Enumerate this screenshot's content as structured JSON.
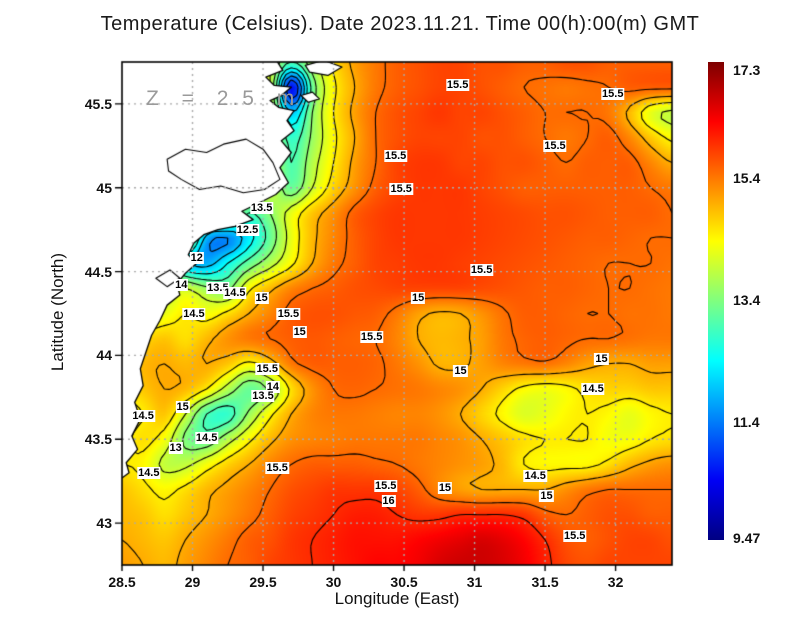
{
  "title": "Temperature (Celsius). Date 2023.11.21. Time 00(h):00(m) GMT",
  "annotation": "Z = 2.5 m",
  "chart_data": {
    "type": "heatmap",
    "title": "Temperature (Celsius). Date 2023.11.21. Time 00(h):00(m) GMT",
    "xlabel": "Longitude (East)",
    "ylabel": "Latitude (North)",
    "xlim": [
      28.5,
      32.4
    ],
    "ylim": [
      42.75,
      45.75
    ],
    "x_ticks": [
      28.5,
      29,
      29.5,
      30,
      30.5,
      31,
      31.5,
      32
    ],
    "x_tick_labels": [
      "28.5",
      "29",
      "29.5",
      "30",
      "30.5",
      "31",
      "31.5",
      "32"
    ],
    "y_ticks": [
      45.5,
      45,
      44.5,
      44,
      43.5,
      43
    ],
    "y_tick_labels": [
      "45.5",
      "45",
      "44.5",
      "44",
      "43.5",
      "43"
    ],
    "grid": "dotted",
    "gridline_color": "#aaaaaa",
    "land_color": "#ffffff",
    "coast_color": "#000000",
    "contour_color": "#000000",
    "contour_interval": 0.5,
    "contour_levels": [
      10.5,
      11,
      11.5,
      12,
      12.5,
      13,
      13.5,
      14,
      14.5,
      15,
      15.5,
      16
    ],
    "colorbar": {
      "min": 9.47,
      "max": 17.3,
      "tick_values": [
        17.3,
        15.4,
        13.4,
        11.4,
        9.47
      ],
      "tick_labels": [
        "17.3",
        "15.4",
        "13.4",
        "11.4",
        "9.47"
      ],
      "colormap": "jet",
      "stops": [
        [
          0,
          "#000082"
        ],
        [
          0.125,
          "#0000f5"
        ],
        [
          0.375,
          "#00ffff"
        ],
        [
          0.625,
          "#ffff00"
        ],
        [
          0.875,
          "#ff0000"
        ],
        [
          1,
          "#7d0000"
        ]
      ]
    },
    "grid_lon": {
      "start": 28.5,
      "step": 0.15,
      "n": 27
    },
    "grid_lat": {
      "start": 45.75,
      "step": -0.15,
      "n": 21
    },
    "temperature_grid": [
      [
        14,
        14,
        14,
        14,
        14,
        14,
        14,
        14,
        13.0,
        13.8,
        14.6,
        15.1,
        15.4,
        15.6,
        15.7,
        15.8,
        15.8,
        15.7,
        15.7,
        15.6,
        15.6,
        15.7,
        15.7,
        15.6,
        15.6,
        15.6,
        15.6
      ],
      [
        14,
        14,
        14,
        14,
        14,
        14,
        14,
        14,
        10.5,
        13.2,
        14.4,
        15.0,
        15.4,
        15.6,
        15.7,
        15.8,
        15.8,
        15.7,
        15.6,
        15.5,
        15.45,
        15.4,
        15.45,
        15.5,
        15.6,
        15.6,
        15.6
      ],
      [
        14,
        14,
        14,
        14,
        14,
        14,
        14,
        14,
        12.0,
        13.5,
        14.5,
        15.1,
        15.5,
        15.7,
        15.8,
        15.9,
        15.8,
        15.8,
        15.7,
        15.6,
        15.5,
        15.5,
        15.5,
        15.4,
        14.9,
        14.2,
        13.9
      ],
      [
        14,
        14,
        14,
        14,
        14,
        14,
        14,
        14,
        12.8,
        13.6,
        14.4,
        15.0,
        15.5,
        15.7,
        15.8,
        15.8,
        15.8,
        15.7,
        15.7,
        15.6,
        15.5,
        15.4,
        15.5,
        15.6,
        15.3,
        14.8,
        14.4
      ],
      [
        14,
        14,
        14,
        14,
        14,
        14,
        14,
        14,
        13.0,
        13.8,
        14.5,
        15.1,
        15.5,
        15.8,
        15.9,
        15.9,
        15.8,
        15.8,
        15.7,
        15.7,
        15.6,
        15.5,
        15.6,
        15.6,
        15.6,
        15.3,
        15.0
      ],
      [
        14,
        14,
        14,
        14,
        14,
        14,
        14,
        14,
        13.2,
        14.0,
        14.7,
        15.2,
        15.6,
        15.8,
        15.9,
        15.9,
        15.9,
        15.8,
        15.7,
        15.6,
        15.6,
        15.6,
        15.6,
        15.6,
        15.6,
        15.5,
        15.4
      ],
      [
        14,
        14,
        14,
        14,
        14,
        14,
        13.0,
        13.5,
        14.2,
        14.8,
        15.2,
        15.6,
        15.8,
        15.9,
        15.9,
        15.9,
        15.9,
        15.85,
        15.8,
        15.75,
        15.7,
        15.7,
        15.65,
        15.6,
        15.6,
        15.6,
        15.5
      ],
      [
        14,
        14,
        14,
        14,
        11.8,
        11.5,
        12.3,
        13.2,
        14.2,
        14.9,
        15.3,
        15.6,
        15.8,
        15.9,
        15.9,
        15.9,
        15.9,
        15.85,
        15.8,
        15.75,
        15.7,
        15.65,
        15.6,
        15.6,
        15.55,
        15.5,
        15.5
      ],
      [
        14,
        14,
        14,
        12.2,
        11.8,
        12.5,
        13.2,
        13.8,
        14.4,
        15.0,
        15.4,
        15.6,
        15.8,
        15.85,
        15.9,
        15.9,
        15.85,
        15.8,
        15.75,
        15.7,
        15.65,
        15.6,
        15.55,
        15.5,
        15.5,
        15.5,
        15.45
      ],
      [
        14,
        14,
        13.8,
        14.0,
        13.6,
        13.4,
        14.4,
        14.9,
        15.3,
        15.5,
        15.6,
        15.7,
        15.75,
        15.8,
        15.8,
        15.8,
        15.8,
        15.75,
        15.7,
        15.65,
        15.6,
        15.6,
        15.55,
        15.5,
        15.5,
        15.45,
        15.4
      ],
      [
        14,
        14,
        14.2,
        14.5,
        14.3,
        14.6,
        15.0,
        15.3,
        15.6,
        15.7,
        15.7,
        15.65,
        15.6,
        15.4,
        15.1,
        14.95,
        15.0,
        15.2,
        15.45,
        15.6,
        15.6,
        15.55,
        15.5,
        15.5,
        15.45,
        15.45,
        15.4
      ],
      [
        14,
        14.6,
        14.8,
        14.6,
        14.9,
        15.2,
        15.4,
        15.5,
        15.6,
        15.65,
        15.6,
        15.55,
        15.5,
        15.3,
        15.0,
        14.9,
        14.95,
        15.1,
        15.4,
        15.55,
        15.6,
        15.55,
        15.5,
        15.5,
        15.45,
        15.4,
        15.4
      ],
      [
        14.5,
        14.9,
        15.0,
        14.9,
        15.0,
        14.8,
        14.4,
        14.8,
        15.4,
        15.6,
        15.6,
        15.6,
        15.55,
        15.4,
        15.2,
        14.95,
        14.95,
        15.1,
        15.3,
        15.4,
        15.45,
        15.3,
        15.1,
        15.0,
        15.0,
        15.1,
        15.1
      ],
      [
        14.5,
        14.8,
        15.0,
        14.9,
        14.5,
        13.8,
        13.2,
        13.6,
        14.6,
        15.2,
        15.5,
        15.55,
        15.5,
        15.45,
        15.4,
        15.3,
        15.2,
        15.0,
        14.7,
        14.4,
        14.3,
        14.4,
        14.6,
        14.7,
        14.7,
        14.8,
        14.8
      ],
      [
        14.3,
        14.5,
        14.8,
        14.0,
        13.0,
        12.8,
        13.6,
        14.4,
        15.0,
        15.3,
        15.4,
        15.4,
        15.35,
        15.3,
        15.3,
        15.2,
        15.0,
        14.7,
        14.4,
        14.1,
        14.2,
        14.4,
        14.5,
        14.4,
        14.2,
        14.4,
        14.5
      ],
      [
        14.4,
        14.6,
        14.3,
        13.4,
        13.2,
        13.8,
        14.4,
        14.9,
        15.2,
        15.3,
        15.35,
        15.4,
        15.4,
        15.4,
        15.4,
        15.3,
        15.2,
        15.0,
        14.8,
        14.6,
        14.5,
        14.5,
        14.5,
        14.3,
        14.3,
        14.5,
        14.6
      ],
      [
        14.5,
        14.4,
        13.9,
        13.9,
        14.3,
        14.7,
        15.0,
        15.3,
        15.5,
        15.6,
        15.6,
        15.6,
        15.55,
        15.5,
        15.4,
        15.3,
        15.2,
        15.1,
        14.9,
        14.5,
        14.4,
        14.4,
        14.4,
        14.6,
        14.9,
        15.1,
        15.2
      ],
      [
        14.8,
        14.6,
        14.4,
        14.6,
        14.9,
        15.1,
        15.3,
        15.5,
        15.7,
        15.8,
        15.9,
        15.9,
        15.9,
        15.8,
        15.6,
        15.3,
        15.1,
        15.0,
        15.0,
        15.0,
        15.0,
        15.2,
        15.4,
        15.5,
        15.5,
        15.5,
        15.5
      ],
      [
        14.9,
        14.8,
        14.6,
        14.8,
        15.0,
        15.2,
        15.4,
        15.6,
        15.8,
        15.9,
        16.0,
        16.1,
        16.1,
        16.0,
        15.9,
        15.9,
        16.0,
        16.0,
        16.0,
        15.9,
        15.6,
        15.5,
        15.6,
        15.7,
        15.7,
        15.6,
        15.6
      ],
      [
        15.0,
        14.9,
        14.8,
        15.0,
        15.2,
        15.4,
        15.6,
        15.7,
        15.9,
        16.0,
        16.1,
        16.2,
        16.2,
        16.2,
        16.3,
        16.4,
        16.5,
        16.6,
        16.5,
        16.3,
        16.0,
        15.7,
        15.6,
        15.7,
        15.8,
        15.8,
        15.7
      ],
      [
        15.1,
        15.0,
        14.9,
        15.1,
        15.3,
        15.5,
        15.6,
        15.8,
        15.9,
        16.0,
        16.1,
        16.2,
        16.3,
        16.3,
        16.4,
        16.6,
        16.7,
        16.7,
        16.6,
        16.4,
        16.1,
        15.8,
        15.7,
        15.8,
        15.8,
        15.8,
        15.8
      ]
    ],
    "coastline": {
      "main": [
        [
          28.4,
          45.9
        ],
        [
          29.58,
          45.9
        ],
        [
          29.58,
          45.78
        ],
        [
          29.64,
          45.7
        ],
        [
          29.52,
          45.66
        ],
        [
          29.58,
          45.61
        ],
        [
          29.7,
          45.6
        ],
        [
          29.63,
          45.55
        ],
        [
          29.55,
          45.52
        ],
        [
          29.61,
          45.48
        ],
        [
          29.72,
          45.46
        ],
        [
          29.67,
          45.4
        ],
        [
          29.72,
          45.34
        ],
        [
          29.63,
          45.28
        ],
        [
          29.7,
          45.21
        ],
        [
          29.62,
          45.12
        ],
        [
          29.68,
          45.03
        ],
        [
          29.59,
          44.96
        ],
        [
          29.45,
          44.9
        ],
        [
          29.35,
          44.86
        ],
        [
          29.43,
          44.81
        ],
        [
          29.3,
          44.77
        ],
        [
          29.18,
          44.75
        ],
        [
          29.08,
          44.72
        ],
        [
          29.01,
          44.67
        ],
        [
          28.97,
          44.6
        ],
        [
          29.03,
          44.55
        ],
        [
          28.95,
          44.49
        ],
        [
          28.89,
          44.43
        ],
        [
          28.91,
          44.36
        ],
        [
          28.82,
          44.3
        ],
        [
          28.77,
          44.21
        ],
        [
          28.71,
          44.12
        ],
        [
          28.67,
          44.02
        ],
        [
          28.63,
          43.92
        ],
        [
          28.65,
          43.82
        ],
        [
          28.59,
          43.72
        ],
        [
          28.63,
          43.62
        ],
        [
          28.57,
          43.52
        ],
        [
          28.61,
          43.44
        ],
        [
          28.53,
          43.36
        ],
        [
          28.55,
          43.3
        ],
        [
          28.47,
          43.25
        ],
        [
          28.4,
          43.28
        ]
      ],
      "lakes": [
        [
          [
            28.82,
            45.17
          ],
          [
            28.95,
            45.23
          ],
          [
            29.1,
            45.21
          ],
          [
            29.22,
            45.26
          ],
          [
            29.38,
            45.29
          ],
          [
            29.5,
            45.23
          ],
          [
            29.57,
            45.15
          ],
          [
            29.62,
            45.05
          ],
          [
            29.51,
            44.99
          ],
          [
            29.36,
            44.97
          ],
          [
            29.2,
            45.01
          ],
          [
            29.05,
            44.99
          ],
          [
            28.92,
            45.05
          ],
          [
            28.83,
            45.1
          ]
        ],
        [
          [
            28.74,
            44.46
          ],
          [
            28.84,
            44.51
          ],
          [
            28.91,
            44.46
          ],
          [
            28.82,
            44.41
          ]
        ]
      ],
      "islands": [
        [
          [
            29.8,
            45.73
          ],
          [
            29.93,
            45.76
          ],
          [
            30.06,
            45.72
          ],
          [
            29.96,
            45.67
          ],
          [
            29.83,
            45.69
          ]
        ],
        [
          [
            29.77,
            45.55
          ],
          [
            29.85,
            45.57
          ],
          [
            29.9,
            45.53
          ],
          [
            29.82,
            45.51
          ]
        ]
      ]
    },
    "contour_labels": [
      {
        "lon": 30.88,
        "lat": 45.61,
        "text": "15.5"
      },
      {
        "lon": 31.98,
        "lat": 45.56,
        "text": "15.5"
      },
      {
        "lon": 30.44,
        "lat": 45.19,
        "text": "15.5"
      },
      {
        "lon": 31.57,
        "lat": 45.25,
        "text": "15.5"
      },
      {
        "lon": 30.48,
        "lat": 44.99,
        "text": "15.5"
      },
      {
        "lon": 29.49,
        "lat": 44.88,
        "text": "13.5"
      },
      {
        "lon": 29.39,
        "lat": 44.75,
        "text": "12.5"
      },
      {
        "lon": 29.03,
        "lat": 44.58,
        "text": "12"
      },
      {
        "lon": 28.92,
        "lat": 44.42,
        "text": "14"
      },
      {
        "lon": 29.18,
        "lat": 44.4,
        "text": "13.5"
      },
      {
        "lon": 29.3,
        "lat": 44.37,
        "text": "14.5"
      },
      {
        "lon": 29.49,
        "lat": 44.34,
        "text": "15"
      },
      {
        "lon": 29.01,
        "lat": 44.25,
        "text": "14.5"
      },
      {
        "lon": 29.68,
        "lat": 44.25,
        "text": "15.5"
      },
      {
        "lon": 29.76,
        "lat": 44.14,
        "text": "15"
      },
      {
        "lon": 30.6,
        "lat": 44.34,
        "text": "15"
      },
      {
        "lon": 31.05,
        "lat": 44.51,
        "text": "15.5"
      },
      {
        "lon": 30.27,
        "lat": 44.11,
        "text": "15.5"
      },
      {
        "lon": 30.9,
        "lat": 43.91,
        "text": "15"
      },
      {
        "lon": 31.9,
        "lat": 43.98,
        "text": "15"
      },
      {
        "lon": 31.84,
        "lat": 43.8,
        "text": "14.5"
      },
      {
        "lon": 29.53,
        "lat": 43.92,
        "text": "15.5"
      },
      {
        "lon": 29.57,
        "lat": 43.81,
        "text": "14"
      },
      {
        "lon": 29.5,
        "lat": 43.76,
        "text": "13.5"
      },
      {
        "lon": 28.93,
        "lat": 43.69,
        "text": "15"
      },
      {
        "lon": 28.65,
        "lat": 43.64,
        "text": "14.5"
      },
      {
        "lon": 29.1,
        "lat": 43.51,
        "text": "14.5"
      },
      {
        "lon": 28.88,
        "lat": 43.45,
        "text": "13"
      },
      {
        "lon": 28.69,
        "lat": 43.3,
        "text": "14.5"
      },
      {
        "lon": 29.6,
        "lat": 43.33,
        "text": "15.5"
      },
      {
        "lon": 30.37,
        "lat": 43.22,
        "text": "15.5"
      },
      {
        "lon": 30.39,
        "lat": 43.13,
        "text": "16"
      },
      {
        "lon": 30.79,
        "lat": 43.21,
        "text": "15"
      },
      {
        "lon": 31.43,
        "lat": 43.28,
        "text": "14.5"
      },
      {
        "lon": 31.51,
        "lat": 43.16,
        "text": "15"
      },
      {
        "lon": 31.71,
        "lat": 42.92,
        "text": "15.5"
      }
    ]
  }
}
